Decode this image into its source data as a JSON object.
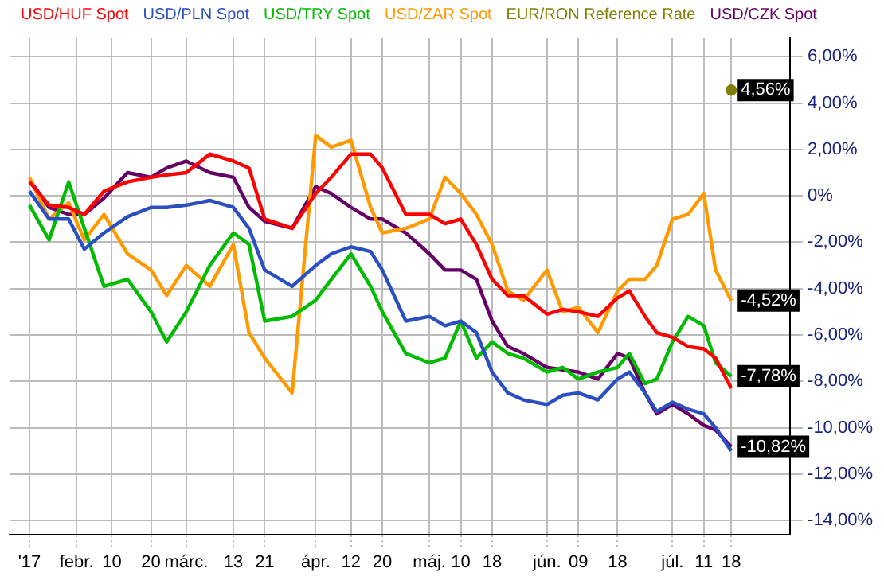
{
  "chart_data": {
    "type": "line",
    "x": [
      "2017-01-20",
      "2017-01-25",
      "2017-01-30",
      "2017-02-03",
      "2017-02-08",
      "2017-02-14",
      "2017-02-20",
      "2017-02-24",
      "2017-03-01",
      "2017-03-07",
      "2017-03-13",
      "2017-03-17",
      "2017-03-21",
      "2017-03-28",
      "2017-04-03",
      "2017-04-07",
      "2017-04-12",
      "2017-04-17",
      "2017-04-20",
      "2017-04-26",
      "2017-05-02",
      "2017-05-06",
      "2017-05-10",
      "2017-05-14",
      "2017-05-18",
      "2017-05-22",
      "2017-05-26",
      "2017-06-01",
      "2017-06-05",
      "2017-06-09",
      "2017-06-14",
      "2017-06-19",
      "2017-06-22",
      "2017-06-26",
      "2017-06-29",
      "2017-07-03",
      "2017-07-07",
      "2017-07-11",
      "2017-07-14",
      "2017-07-18"
    ],
    "series": [
      {
        "name": "USD/HUF Spot",
        "color": "#ff0000",
        "values": [
          0.6,
          -0.4,
          -0.5,
          -0.8,
          0.2,
          0.6,
          0.8,
          0.9,
          1.0,
          1.8,
          1.5,
          1.2,
          -1.0,
          -1.4,
          0.1,
          0.8,
          1.8,
          1.8,
          1.2,
          -0.8,
          -0.8,
          -1.2,
          -1.0,
          -2.1,
          -3.6,
          -4.3,
          -4.3,
          -5.1,
          -4.9,
          -5.0,
          -5.2,
          -4.4,
          -4.1,
          -5.2,
          -5.9,
          -6.1,
          -6.5,
          -6.6,
          -7.0,
          -8.3
        ]
      },
      {
        "name": "USD/PLN Spot",
        "color": "#2a4fc0",
        "values": [
          0.2,
          -1.0,
          -1.0,
          -2.3,
          -1.6,
          -0.9,
          -0.5,
          -0.5,
          -0.4,
          -0.2,
          -0.5,
          -1.4,
          -3.2,
          -3.9,
          -3.0,
          -2.5,
          -2.2,
          -2.4,
          -3.2,
          -5.4,
          -5.2,
          -5.6,
          -5.4,
          -5.9,
          -7.6,
          -8.5,
          -8.8,
          -9.0,
          -8.6,
          -8.5,
          -8.8,
          -7.9,
          -7.6,
          -8.5,
          -9.3,
          -8.9,
          -9.2,
          -9.4,
          -10.0,
          -11.0
        ]
      },
      {
        "name": "USD/TRY Spot",
        "color": "#00bb00",
        "values": [
          -0.4,
          -1.9,
          0.6,
          -1.4,
          -3.9,
          -3.6,
          -5.0,
          -6.3,
          -5.0,
          -3.0,
          -1.6,
          -2.1,
          -5.4,
          -5.2,
          -4.5,
          -3.6,
          -2.5,
          -3.9,
          -5.0,
          -6.8,
          -7.2,
          -7.0,
          -5.4,
          -7.0,
          -6.3,
          -6.8,
          -7.0,
          -7.6,
          -7.4,
          -7.9,
          -7.6,
          -7.4,
          -6.8,
          -8.1,
          -7.9,
          -6.3,
          -5.2,
          -5.6,
          -7.2,
          -7.78
        ],
        "value_labels": [
          null,
          null,
          null,
          null,
          null,
          null,
          null,
          null,
          null,
          null,
          null,
          null,
          null,
          null,
          null,
          null,
          null,
          null,
          null,
          null,
          null,
          null,
          null,
          null,
          null,
          null,
          null,
          null,
          null,
          null,
          null,
          null,
          null,
          null,
          null,
          null,
          null,
          null,
          null,
          "-7,78%"
        ]
      },
      {
        "name": "USD/ZAR Spot",
        "color": "#ff9900",
        "values": [
          0.8,
          -1.0,
          -0.3,
          -1.9,
          -0.8,
          -2.5,
          -3.2,
          -4.3,
          -3.0,
          -3.9,
          -2.1,
          -5.9,
          -7.0,
          -8.5,
          2.6,
          2.1,
          2.4,
          -0.5,
          -1.6,
          -1.4,
          -1.0,
          0.8,
          0.1,
          -0.8,
          -2.1,
          -4.1,
          -4.5,
          -3.2,
          -5.0,
          -4.8,
          -5.9,
          -4.1,
          -3.6,
          -3.6,
          -3.0,
          -1.0,
          -0.8,
          0.1,
          -3.2,
          -4.52
        ],
        "value_labels": [
          null,
          null,
          null,
          null,
          null,
          null,
          null,
          null,
          null,
          null,
          null,
          null,
          null,
          null,
          null,
          null,
          null,
          null,
          null,
          null,
          null,
          null,
          null,
          null,
          null,
          null,
          null,
          null,
          null,
          null,
          null,
          null,
          null,
          null,
          null,
          null,
          null,
          null,
          null,
          "-4,52%"
        ]
      },
      {
        "name": "EUR/RON Reference Rate",
        "color": "#808000",
        "marker": "circle",
        "values": [
          null,
          null,
          null,
          null,
          null,
          null,
          null,
          null,
          null,
          null,
          null,
          null,
          null,
          null,
          null,
          null,
          null,
          null,
          null,
          null,
          null,
          null,
          null,
          null,
          null,
          null,
          null,
          null,
          null,
          null,
          null,
          null,
          null,
          null,
          null,
          null,
          null,
          null,
          null,
          4.56
        ],
        "value_labels": [
          null,
          null,
          null,
          null,
          null,
          null,
          null,
          null,
          null,
          null,
          null,
          null,
          null,
          null,
          null,
          null,
          null,
          null,
          null,
          null,
          null,
          null,
          null,
          null,
          null,
          null,
          null,
          null,
          null,
          null,
          null,
          null,
          null,
          null,
          null,
          null,
          null,
          null,
          null,
          "4,56%"
        ]
      },
      {
        "name": "USD/CZK Spot",
        "color": "#660066",
        "values": [
          0.7,
          -0.5,
          -0.8,
          -0.8,
          -0.1,
          1.0,
          0.8,
          1.2,
          1.5,
          1.0,
          0.8,
          -0.5,
          -1.1,
          -1.4,
          0.4,
          0.1,
          -0.5,
          -1.0,
          -1.0,
          -1.6,
          -2.5,
          -3.2,
          -3.2,
          -3.6,
          -5.4,
          -6.5,
          -6.8,
          -7.4,
          -7.5,
          -7.6,
          -7.9,
          -6.8,
          -7.0,
          -8.5,
          -9.4,
          -9.0,
          -9.4,
          -9.9,
          -10.1,
          -10.82
        ],
        "value_labels": [
          null,
          null,
          null,
          null,
          null,
          null,
          null,
          null,
          null,
          null,
          null,
          null,
          null,
          null,
          null,
          null,
          null,
          null,
          null,
          null,
          null,
          null,
          null,
          null,
          null,
          null,
          null,
          null,
          null,
          null,
          null,
          null,
          null,
          null,
          null,
          null,
          null,
          null,
          null,
          "-10,82%"
        ]
      }
    ],
    "xlim": [
      "2017-01-15",
      "2017-08-02"
    ],
    "xticks": [
      {
        "value": "2017-01-20",
        "label": "'17"
      },
      {
        "value": "2017-02-01",
        "label": "febr."
      },
      {
        "value": "2017-02-10",
        "label": "10"
      },
      {
        "value": "2017-02-20",
        "label": "20"
      },
      {
        "value": "2017-03-01",
        "label": "márc."
      },
      {
        "value": "2017-03-13",
        "label": "13"
      },
      {
        "value": "2017-03-21",
        "label": "21"
      },
      {
        "value": "2017-04-03",
        "label": "ápr."
      },
      {
        "value": "2017-04-12",
        "label": "12"
      },
      {
        "value": "2017-04-20",
        "label": "20"
      },
      {
        "value": "2017-05-02",
        "label": "máj."
      },
      {
        "value": "2017-05-10",
        "label": "10"
      },
      {
        "value": "2017-05-18",
        "label": "18"
      },
      {
        "value": "2017-06-01",
        "label": "jún."
      },
      {
        "value": "2017-06-09",
        "label": "09"
      },
      {
        "value": "2017-06-19",
        "label": "18"
      },
      {
        "value": "2017-07-03",
        "label": "júl."
      },
      {
        "value": "2017-07-11",
        "label": "11"
      },
      {
        "value": "2017-07-18",
        "label": "18"
      }
    ],
    "ylim": [
      -14.6,
      6.8
    ],
    "yticks": [
      {
        "value": -14,
        "label": "-14,00%"
      },
      {
        "value": -12,
        "label": "-12,00%"
      },
      {
        "value": -10,
        "label": "-10,00%"
      },
      {
        "value": -8,
        "label": "-8,00%"
      },
      {
        "value": -6,
        "label": "-6,00%"
      },
      {
        "value": -4,
        "label": "-4,00%"
      },
      {
        "value": -2,
        "label": "-2,00%"
      },
      {
        "value": 0,
        "label": "0%"
      },
      {
        "value": 2,
        "label": "2,00%"
      },
      {
        "value": 4,
        "label": "4,00%"
      },
      {
        "value": 6,
        "label": "6,00%"
      }
    ],
    "grid": true,
    "legend": "top left",
    "marker": "none",
    "line_style": "solid"
  }
}
